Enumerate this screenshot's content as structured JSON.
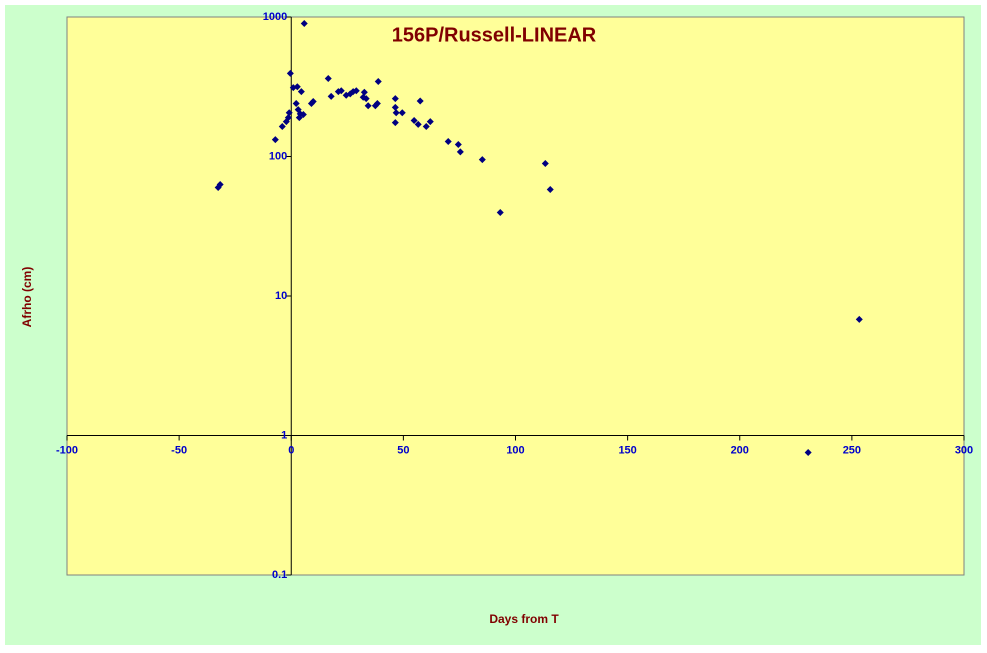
{
  "chart_data": {
    "type": "scatter",
    "title": "156P/Russell-LINEAR",
    "x_label": "Days from T",
    "y_label": "Afrho (cm)",
    "x": [
      -32.6,
      -31.7,
      -7.1,
      -4,
      -2.2,
      -1.3,
      -0.9,
      -0.4,
      0.9,
      2.2,
      2.7,
      3.1,
      3.6,
      4,
      4.5,
      5.4,
      5.8,
      9,
      9.8,
      16.5,
      17.8,
      21,
      22.3,
      24.5,
      26.3,
      27.6,
      29,
      32.1,
      32.6,
      33.4,
      34.3,
      37.5,
      38.4,
      38.8,
      46.4,
      46.4,
      46.8,
      46.4,
      49.5,
      54.8,
      56.6,
      57.5,
      60.2,
      62,
      70,
      74.5,
      75.4,
      85.2,
      93.2,
      113.3,
      115.5,
      253.3,
      230.5
    ],
    "values": [
      60,
      63,
      132,
      164,
      178,
      190,
      206,
      394,
      312,
      240,
      316,
      217,
      190,
      202,
      292,
      200,
      898,
      240,
      248,
      362,
      270,
      292,
      296,
      275,
      281,
      292,
      296,
      266,
      289,
      260,
      231,
      231,
      240,
      345,
      260,
      225,
      206,
      175,
      206,
      181,
      170,
      250,
      164,
      178,
      128,
      122,
      108,
      95,
      39.7,
      89,
      58,
      6.8,
      0.755
    ],
    "color": "#000080",
    "xlim": [
      -100,
      300
    ],
    "xticks": [
      -100,
      -50,
      0,
      50,
      100,
      150,
      200,
      250,
      300
    ],
    "ylim": [
      0.1,
      1000
    ],
    "yticks": [
      0.1,
      1,
      10,
      100,
      1000
    ],
    "log_y": true,
    "grid": false
  }
}
